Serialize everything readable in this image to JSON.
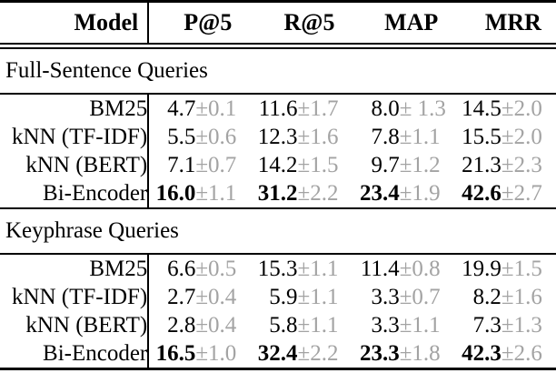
{
  "table": {
    "columns": {
      "model": "Model",
      "metrics": [
        "P@5",
        "R@5",
        "MAP",
        "MRR"
      ]
    },
    "colors": {
      "value_text": "#000000",
      "stddev_text": "#a3a3a3",
      "rule": "#000000"
    },
    "sections": [
      {
        "title": "Full-Sentence Queries",
        "rows": [
          {
            "model": "BM25",
            "best": false,
            "cells": [
              {
                "v": "4.7",
                "sd": "±0.1"
              },
              {
                "v": "11.6",
                "sd": "±1.7"
              },
              {
                "v": "8.0",
                "sd": "± 1.3"
              },
              {
                "v": "14.5",
                "sd": "±2.0"
              }
            ]
          },
          {
            "model": "kNN (TF-IDF)",
            "best": false,
            "cells": [
              {
                "v": "5.5",
                "sd": "±0.6"
              },
              {
                "v": "12.3",
                "sd": "±1.6"
              },
              {
                "v": "7.8",
                "sd": "±1.1"
              },
              {
                "v": "15.5",
                "sd": "±2.0"
              }
            ]
          },
          {
            "model": "kNN (BERT)",
            "best": false,
            "cells": [
              {
                "v": "7.1",
                "sd": "±0.7"
              },
              {
                "v": "14.2",
                "sd": "±1.5"
              },
              {
                "v": "9.7",
                "sd": "±1.2"
              },
              {
                "v": "21.3",
                "sd": "±2.3"
              }
            ]
          },
          {
            "model": "Bi-Encoder",
            "best": true,
            "cells": [
              {
                "v": "16.0",
                "sd": "±1.1"
              },
              {
                "v": "31.2",
                "sd": "±2.2"
              },
              {
                "v": "23.4",
                "sd": "±1.9"
              },
              {
                "v": "42.6",
                "sd": "±2.7"
              }
            ]
          }
        ]
      },
      {
        "title": "Keyphrase Queries",
        "rows": [
          {
            "model": "BM25",
            "best": false,
            "cells": [
              {
                "v": "6.6",
                "sd": "±0.5"
              },
              {
                "v": "15.3",
                "sd": "±1.1"
              },
              {
                "v": "11.4",
                "sd": "±0.8"
              },
              {
                "v": "19.9",
                "sd": "±1.5"
              }
            ]
          },
          {
            "model": "kNN (TF-IDF)",
            "best": false,
            "cells": [
              {
                "v": "2.7",
                "sd": "±0.4"
              },
              {
                "v": "5.9",
                "sd": "±1.1"
              },
              {
                "v": "3.3",
                "sd": "±0.7"
              },
              {
                "v": "8.2",
                "sd": "±1.6"
              }
            ]
          },
          {
            "model": "kNN (BERT)",
            "best": false,
            "cells": [
              {
                "v": "2.8",
                "sd": "±0.4"
              },
              {
                "v": "5.8",
                "sd": "±1.1"
              },
              {
                "v": "3.3",
                "sd": "±1.1"
              },
              {
                "v": "7.3",
                "sd": "±1.3"
              }
            ]
          },
          {
            "model": "Bi-Encoder",
            "best": true,
            "cells": [
              {
                "v": "16.5",
                "sd": "±1.0"
              },
              {
                "v": "32.4",
                "sd": "±2.2"
              },
              {
                "v": "23.3",
                "sd": "±1.8"
              },
              {
                "v": "42.3",
                "sd": "±2.6"
              }
            ]
          }
        ]
      }
    ]
  }
}
